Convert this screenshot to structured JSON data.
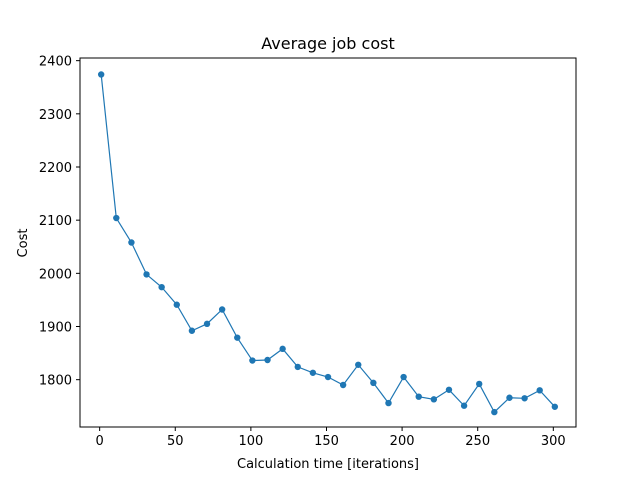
{
  "chart_data": {
    "type": "line",
    "title": "Average job cost",
    "xlabel": "Calculation time [iterations]",
    "ylabel": "Cost",
    "xlim": [
      -13,
      315
    ],
    "ylim": [
      1711,
      2405
    ],
    "xticks": [
      0,
      50,
      100,
      150,
      200,
      250,
      300
    ],
    "yticks": [
      1800,
      1900,
      2000,
      2100,
      2200,
      2300,
      2400
    ],
    "grid": false,
    "marker": "circle",
    "colors": {
      "line": "#1f77b4",
      "marker": "#1f77b4",
      "axes": "#000000"
    },
    "series": [
      {
        "x": [
          1,
          11,
          21,
          31,
          41,
          51,
          61,
          71,
          81,
          91,
          101,
          111,
          121,
          131,
          141,
          151,
          161,
          171,
          181,
          191,
          201,
          211,
          221,
          231,
          241,
          251,
          261,
          271,
          281,
          291,
          301
        ],
        "y": [
          2374,
          2104,
          2058,
          1998,
          1974,
          1941,
          1892,
          1905,
          1932,
          1879,
          1836,
          1837,
          1858,
          1824,
          1813,
          1805,
          1790,
          1828,
          1794,
          1756,
          1805,
          1768,
          1763,
          1781,
          1751,
          1792,
          1739,
          1766,
          1765,
          1780,
          1749
        ]
      }
    ]
  }
}
